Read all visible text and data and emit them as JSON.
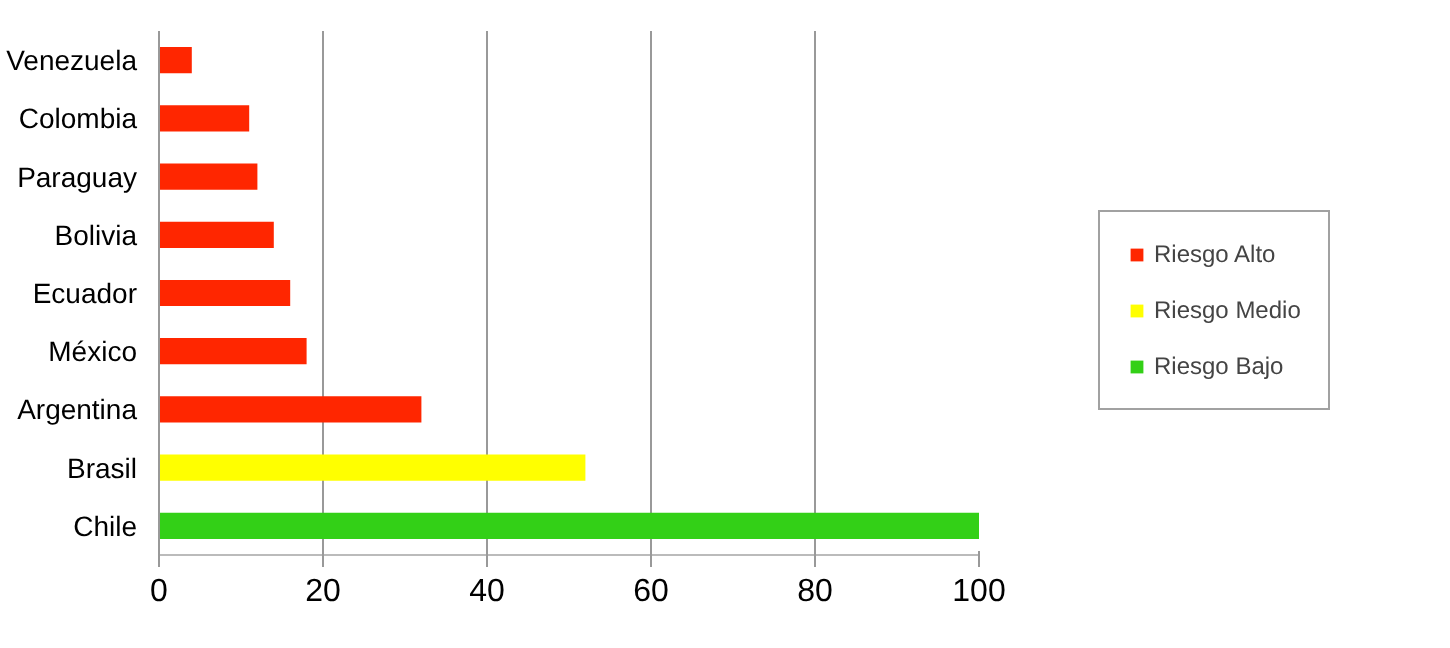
{
  "chart_data": {
    "type": "bar",
    "orientation": "horizontal",
    "categories": [
      "Venezuela",
      "Colombia",
      "Paraguay",
      "Bolivia",
      "Ecuador",
      "México",
      "Argentina",
      "Brasil",
      "Chile"
    ],
    "series": [
      {
        "name": "Riesgo Alto",
        "color": "#ff2600",
        "values": [
          4,
          11,
          12,
          14,
          16,
          18,
          32,
          null,
          null
        ]
      },
      {
        "name": "Riesgo Medio",
        "color": "#ffff00",
        "values": [
          null,
          null,
          null,
          null,
          null,
          null,
          null,
          52,
          null
        ]
      },
      {
        "name": "Riesgo Bajo",
        "color": "#33d017",
        "values": [
          null,
          null,
          null,
          null,
          null,
          null,
          null,
          null,
          100
        ]
      }
    ],
    "xlim": [
      0,
      100
    ],
    "xticks": [
      0,
      20,
      40,
      60,
      80,
      100
    ],
    "grid": "x",
    "legend": "right"
  }
}
